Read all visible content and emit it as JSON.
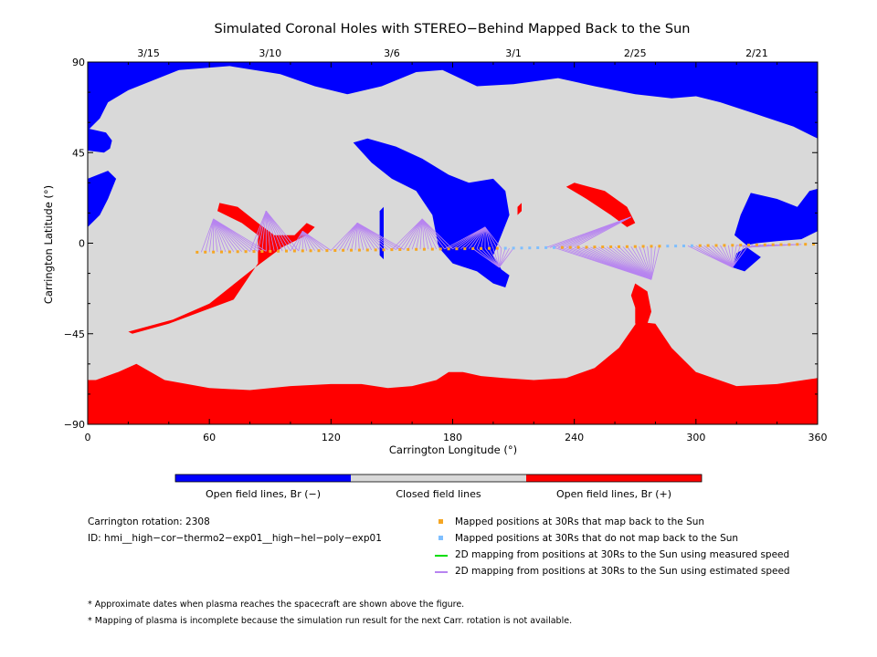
{
  "chart_data": {
    "type": "map",
    "title": "Simulated Coronal Holes with STEREO−Behind Mapped Back to the Sun",
    "xlabel": "Carrington Longitude (°)",
    "ylabel": "Carrington Latitude (°)",
    "xlim": [
      0,
      360
    ],
    "ylim": [
      -90,
      90
    ],
    "x_ticks": [
      "0",
      "60",
      "120",
      "180",
      "240",
      "300",
      "360"
    ],
    "y_ticks": [
      "90",
      "45",
      "0",
      "−45",
      "−90"
    ],
    "top_dates": [
      {
        "lon": 30,
        "label": "3/15"
      },
      {
        "lon": 90,
        "label": "3/10"
      },
      {
        "lon": 150,
        "label": "3/6"
      },
      {
        "lon": 210,
        "label": "3/1"
      },
      {
        "lon": 270,
        "label": "2/25"
      },
      {
        "lon": 330,
        "label": "2/21"
      }
    ],
    "colors": {
      "negative": "#0000ff",
      "positive": "#ff0000",
      "closed": "#d9d9d9",
      "mapped": "#f5a623",
      "unmapped": "#7fbfff",
      "measured": "#00dd00",
      "estimated": "#b784f0"
    },
    "regions": {
      "negative": [
        [
          [
            0,
            90
          ],
          [
            360,
            90
          ],
          [
            360,
            52
          ],
          [
            348,
            58
          ],
          [
            330,
            64
          ],
          [
            312,
            70
          ],
          [
            300,
            73
          ],
          [
            288,
            72
          ],
          [
            270,
            74
          ],
          [
            250,
            78
          ],
          [
            232,
            82
          ],
          [
            210,
            79
          ],
          [
            192,
            78
          ],
          [
            175,
            86
          ],
          [
            162,
            85
          ],
          [
            145,
            78
          ],
          [
            128,
            74
          ],
          [
            112,
            78
          ],
          [
            95,
            84
          ],
          [
            70,
            88
          ],
          [
            45,
            86
          ],
          [
            20,
            76
          ],
          [
            10,
            70
          ],
          [
            6,
            62
          ],
          [
            0,
            56
          ]
        ],
        [
          [
            0,
            57
          ],
          [
            9,
            55
          ],
          [
            12,
            51
          ],
          [
            11,
            47
          ],
          [
            8,
            45
          ],
          [
            0,
            46
          ]
        ],
        [
          [
            0,
            32
          ],
          [
            10,
            36
          ],
          [
            14,
            32
          ],
          [
            10,
            22
          ],
          [
            6,
            14
          ],
          [
            0,
            8
          ]
        ],
        [
          [
            327,
            25
          ],
          [
            340,
            22
          ],
          [
            350,
            18
          ],
          [
            356,
            26
          ],
          [
            360,
            27
          ],
          [
            360,
            6
          ],
          [
            352,
            2
          ],
          [
            340,
            1
          ],
          [
            330,
            0
          ],
          [
            325,
            -1
          ],
          [
            319,
            4
          ],
          [
            322,
            14
          ]
        ],
        [
          [
            325,
            -2
          ],
          [
            332,
            -7
          ],
          [
            324,
            -14
          ],
          [
            318,
            -12
          ],
          [
            320,
            -5
          ]
        ],
        [
          [
            131,
            50
          ],
          [
            138,
            52
          ],
          [
            152,
            48
          ],
          [
            165,
            42
          ],
          [
            178,
            34
          ],
          [
            188,
            30
          ],
          [
            200,
            32
          ],
          [
            206,
            26
          ],
          [
            208,
            14
          ],
          [
            204,
            4
          ],
          [
            200,
            -6
          ],
          [
            204,
            -13
          ],
          [
            208,
            -16
          ],
          [
            206,
            -22
          ],
          [
            200,
            -20
          ],
          [
            192,
            -14
          ],
          [
            180,
            -10
          ],
          [
            173,
            -2
          ],
          [
            170,
            14
          ],
          [
            162,
            26
          ],
          [
            150,
            32
          ],
          [
            140,
            40
          ]
        ],
        [
          [
            144,
            16
          ],
          [
            146,
            18
          ],
          [
            146,
            -8
          ],
          [
            144,
            -6
          ]
        ]
      ],
      "positive": [
        [
          [
            0,
            -90
          ],
          [
            360,
            -90
          ],
          [
            360,
            -67
          ],
          [
            340,
            -70
          ],
          [
            320,
            -71
          ],
          [
            300,
            -64
          ],
          [
            288,
            -52
          ],
          [
            280,
            -40
          ],
          [
            271,
            -39
          ],
          [
            262,
            -52
          ],
          [
            250,
            -62
          ],
          [
            236,
            -67
          ],
          [
            220,
            -68
          ],
          [
            205,
            -67
          ],
          [
            194,
            -66
          ],
          [
            185,
            -64
          ],
          [
            178,
            -64
          ],
          [
            172,
            -68
          ],
          [
            160,
            -71
          ],
          [
            148,
            -72
          ],
          [
            135,
            -70
          ],
          [
            120,
            -70
          ],
          [
            100,
            -71
          ],
          [
            80,
            -73
          ],
          [
            60,
            -72
          ],
          [
            38,
            -68
          ],
          [
            24,
            -60
          ],
          [
            15,
            -64
          ],
          [
            4,
            -68
          ],
          [
            0,
            -68
          ]
        ],
        [
          [
            20,
            -44
          ],
          [
            42,
            -38
          ],
          [
            60,
            -30
          ],
          [
            80,
            -14
          ],
          [
            96,
            -2
          ],
          [
            108,
            4
          ],
          [
            112,
            8
          ],
          [
            108,
            10
          ],
          [
            102,
            4
          ],
          [
            92,
            4
          ],
          [
            84,
            10
          ],
          [
            74,
            18
          ],
          [
            65,
            20
          ],
          [
            64,
            16
          ],
          [
            76,
            10
          ],
          [
            84,
            4
          ],
          [
            84,
            -10
          ],
          [
            72,
            -28
          ],
          [
            56,
            -34
          ],
          [
            40,
            -40
          ],
          [
            22,
            -45
          ]
        ],
        [
          [
            240,
            30
          ],
          [
            255,
            26
          ],
          [
            266,
            18
          ],
          [
            270,
            10
          ],
          [
            266,
            8
          ],
          [
            258,
            14
          ],
          [
            246,
            22
          ],
          [
            236,
            28
          ]
        ],
        [
          [
            270,
            -20
          ],
          [
            276,
            -24
          ],
          [
            278,
            -34
          ],
          [
            276,
            -40
          ],
          [
            270,
            -40
          ],
          [
            270,
            -32
          ],
          [
            268,
            -26
          ]
        ],
        [
          [
            212,
            18
          ],
          [
            214,
            20
          ],
          [
            214,
            16
          ],
          [
            212,
            14
          ]
        ]
      ]
    },
    "mapped_points": {
      "start_lon": 54,
      "end_lon": 358,
      "step": 4,
      "lat_start": -4.5,
      "lat_end": -0.5
    },
    "unmapped_ranges": [
      [
        205,
        232
      ],
      [
        285,
        300
      ]
    ],
    "field_line_bundles": [
      {
        "foot_lon": 62,
        "foot_lat": 12,
        "lon_from": 56,
        "lon_to": 88
      },
      {
        "foot_lon": 88,
        "foot_lat": 16,
        "lon_from": 80,
        "lon_to": 104
      },
      {
        "foot_lon": 106,
        "foot_lat": 6,
        "lon_from": 100,
        "lon_to": 120
      },
      {
        "foot_lon": 133,
        "foot_lat": 10,
        "lon_from": 120,
        "lon_to": 156
      },
      {
        "foot_lon": 165,
        "foot_lat": 12,
        "lon_from": 150,
        "lon_to": 180
      },
      {
        "foot_lon": 196,
        "foot_lat": 8,
        "lon_from": 176,
        "lon_to": 204
      },
      {
        "foot_lon": 203,
        "foot_lat": -12,
        "lon_from": 190,
        "lon_to": 210
      },
      {
        "foot_lon": 268,
        "foot_lat": 13,
        "lon_from": 226,
        "lon_to": 240
      },
      {
        "foot_lon": 278,
        "foot_lat": -18,
        "lon_from": 230,
        "lon_to": 282
      },
      {
        "foot_lon": 318,
        "foot_lat": -12,
        "lon_from": 296,
        "lon_to": 326
      },
      {
        "foot_lon": 326,
        "foot_lat": -2,
        "lon_from": 320,
        "lon_to": 352
      }
    ],
    "colorbar": {
      "segments": [
        "#0000ff",
        "#d9d9d9",
        "#ff0000"
      ],
      "labels": [
        "Open field lines, Br (−)",
        "Closed field lines",
        "Open field lines, Br (+)"
      ]
    },
    "legend": [
      {
        "kind": "square",
        "color": "#f5a623",
        "label": "Mapped positions at 30Rs that map back to the Sun"
      },
      {
        "kind": "square",
        "color": "#7fbfff",
        "label": "Mapped positions at 30Rs that do not map back to the Sun"
      },
      {
        "kind": "line",
        "color": "#00dd00",
        "label": "2D mapping from positions at 30Rs to the Sun using measured speed"
      },
      {
        "kind": "line",
        "color": "#b784f0",
        "label": "2D mapping from positions at 30Rs to the Sun using estimated speed"
      }
    ]
  },
  "info": {
    "rotation": "Carrington rotation: 2308",
    "id": "ID: hmi__high−cor−thermo2−exp01__high−hel−poly−exp01"
  },
  "notes": {
    "dates": "* Approximate dates when plasma reaches the spacecraft are shown above the figure.",
    "incomplete": "* Mapping of plasma is incomplete because the simulation run result for the next Carr. rotation is not available."
  }
}
